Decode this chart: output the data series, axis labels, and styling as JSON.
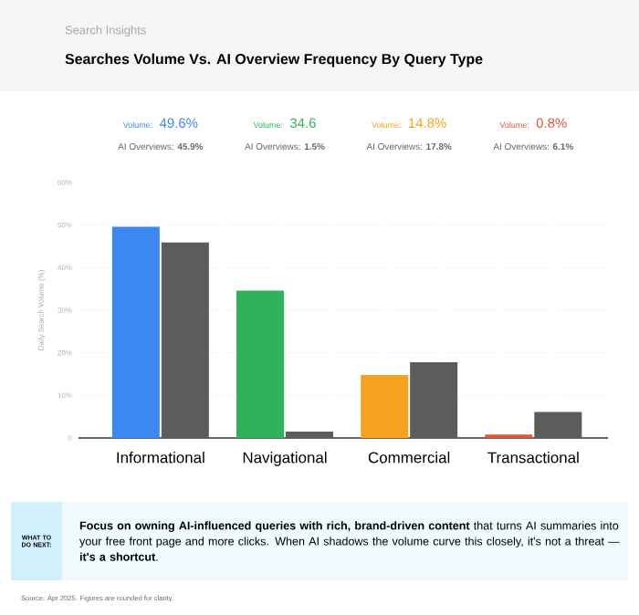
{
  "chart_data": {
    "type": "bar",
    "subtitle": "Search Insights",
    "title": "Searches Volume Vs. AI Overview Frequency By Query Type",
    "ylabel": "Daily Search Volume (%)",
    "categories": [
      "Informational",
      "Navigational",
      "Commercial",
      "Transactional"
    ],
    "series": [
      {
        "name": "Volume:",
        "colors": [
          "#3d87f2",
          "#2fb35a",
          "#f7a21e",
          "#e0573a"
        ],
        "values": [
          49.6,
          34.6,
          14.8,
          0.8
        ],
        "value_labels": [
          "49.6%",
          "34.6",
          "14.8%",
          "0.8%"
        ]
      },
      {
        "name": "AI Overviews:",
        "color": "#5c5c5c",
        "values": [
          45.9,
          1.5,
          17.8,
          6.1
        ],
        "value_labels": [
          "45.9%",
          "1.5%",
          "17.8%",
          "6.1%"
        ]
      }
    ],
    "ylim": [
      0,
      60
    ],
    "yticks": [
      {
        "value": 0,
        "label": "0"
      },
      {
        "value": 10,
        "label": "10%"
      },
      {
        "value": 20,
        "label": "20%"
      },
      {
        "value": 30,
        "label": "30%"
      },
      {
        "value": 40,
        "label": "40%"
      },
      {
        "value": 50,
        "label": "50%"
      },
      {
        "value": 60,
        "label": "60%"
      }
    ],
    "grid": "y",
    "annotations": [
      "WHAT TO DO NEXT:",
      "**Focus on owning AI-influenced queries with rich, brand-driven content** that turns AI summaries into your free front page and more clicks. When AI shadows the volume curve this closely, it's not a threat — **it's a shortcut**.",
      "Source: Apr 2025. Figures are rounded for clarity."
    ]
  }
}
